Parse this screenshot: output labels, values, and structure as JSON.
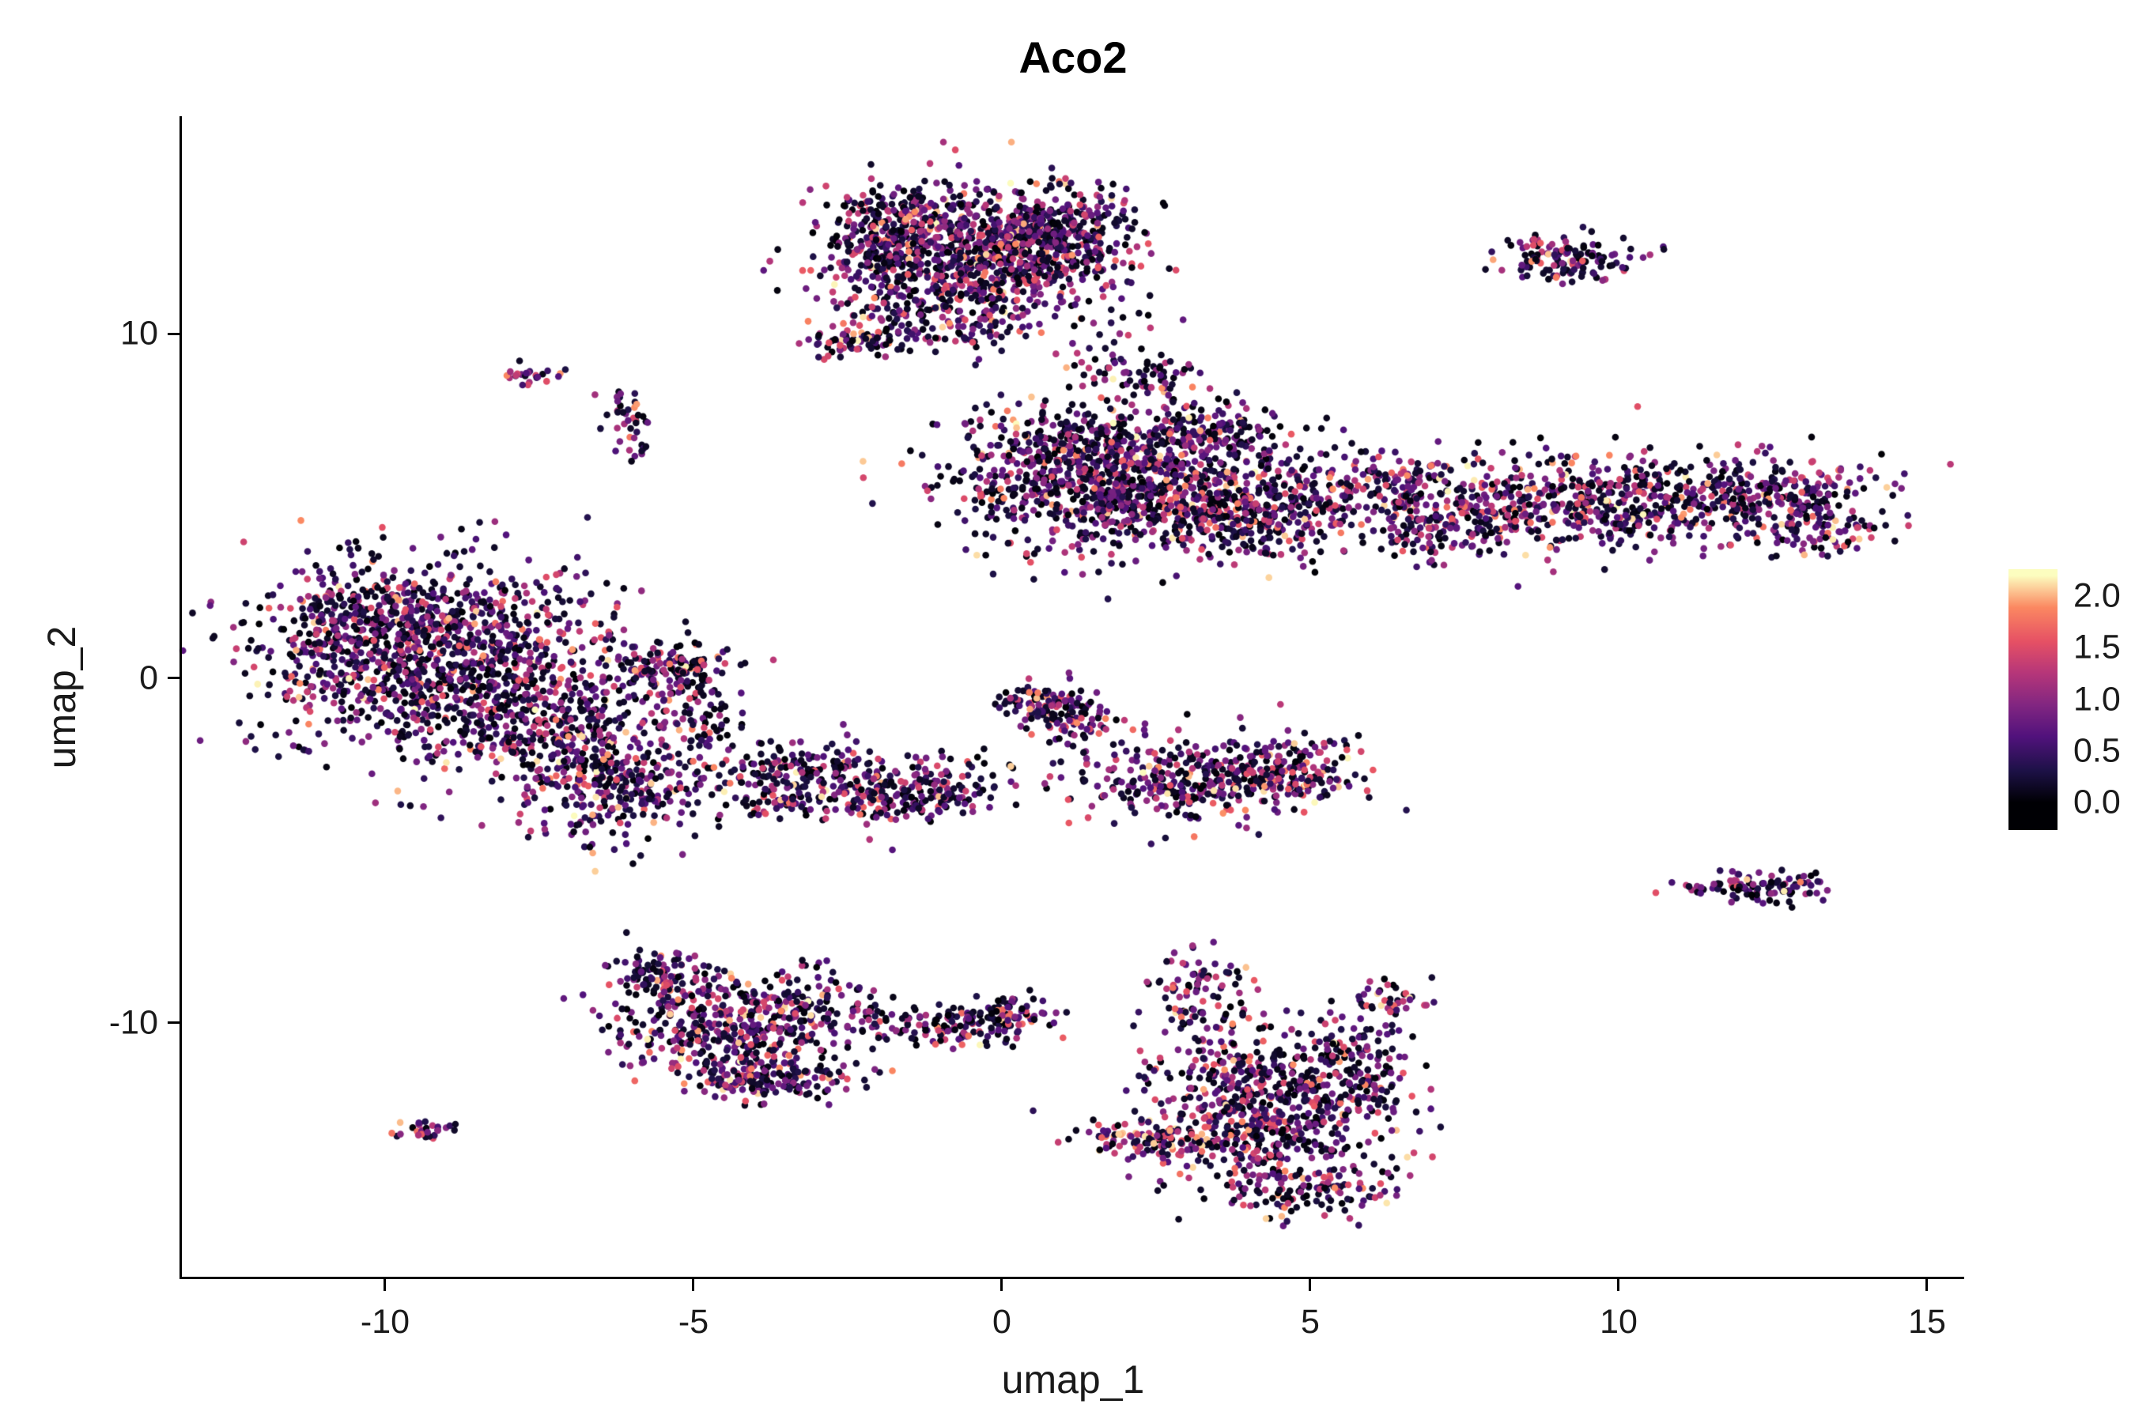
{
  "title": "Aco2",
  "axes": {
    "x": {
      "label": "umap_1",
      "ticks": [
        "-10",
        "-5",
        "0",
        "5",
        "10",
        "15"
      ],
      "tick_values": [
        -10,
        -5,
        0,
        5,
        10,
        15
      ],
      "range": [
        -13.3,
        15.6
      ]
    },
    "y": {
      "label": "umap_2",
      "ticks": [
        "10",
        "0",
        "-10"
      ],
      "tick_values": [
        10,
        0,
        -10
      ],
      "range": [
        -17.4,
        16.3
      ]
    }
  },
  "legend": {
    "ticks": [
      "2.0",
      "1.5",
      "1.0",
      "0.5",
      "0.0"
    ],
    "tick_values": [
      2.0,
      1.5,
      1.0,
      0.5,
      0.0
    ]
  },
  "chart_data": {
    "type": "scatter",
    "title": "Aco2",
    "xlabel": "umap_1",
    "ylabel": "umap_2",
    "xlim": [
      -13.3,
      15.6
    ],
    "ylim": [
      -17.4,
      16.3
    ],
    "grid": false,
    "legend_position": "right",
    "point_radius": 4.3,
    "colormap": {
      "name": "magma",
      "domain": [
        0,
        2.2
      ],
      "stops": [
        {
          "t": 0.0,
          "color": "#000004"
        },
        {
          "t": 0.14,
          "color": "#1d1147"
        },
        {
          "t": 0.29,
          "color": "#51127c"
        },
        {
          "t": 0.43,
          "color": "#822681"
        },
        {
          "t": 0.57,
          "color": "#b63679"
        },
        {
          "t": 0.71,
          "color": "#e65164"
        },
        {
          "t": 0.86,
          "color": "#fb8861"
        },
        {
          "t": 1.0,
          "color": "#fcfdbf"
        }
      ]
    },
    "clusters": [
      {
        "cx": -0.4,
        "cy": 12.3,
        "sx": 1.15,
        "sy": 0.95,
        "n": 850,
        "hot": 0.03
      },
      {
        "cx": 0.7,
        "cy": 12.9,
        "sx": 0.75,
        "sy": 0.6,
        "n": 280,
        "hot": 0
      },
      {
        "cx": -1.6,
        "cy": 13.4,
        "sx": 0.5,
        "sy": 0.4,
        "n": 90,
        "hot": 0
      },
      {
        "cx": -2.35,
        "cy": 9.8,
        "sx": 0.45,
        "sy": 0.22,
        "n": 70,
        "hot": 0.05
      },
      {
        "cx": -0.9,
        "cy": 10.4,
        "sx": 0.8,
        "sy": 0.5,
        "n": 140,
        "hot": 0
      },
      {
        "cx": -1.9,
        "cy": 12.4,
        "sx": 0.45,
        "sy": 0.7,
        "n": 120,
        "hot": 0
      },
      {
        "cx": 1.7,
        "cy": 9.0,
        "sx": 0.4,
        "sy": 0.6,
        "n": 40,
        "hot": 0
      },
      {
        "cx": 9.2,
        "cy": 12.1,
        "sx": 0.55,
        "sy": 0.4,
        "n": 130,
        "hot": 0.06
      },
      {
        "cx": -7.65,
        "cy": 8.8,
        "sx": 0.22,
        "sy": 0.18,
        "n": 24,
        "hot": 0.1
      },
      {
        "cx": -6.05,
        "cy": 7.9,
        "sx": 0.18,
        "sy": 0.45,
        "n": 30,
        "hot": 0
      },
      {
        "cx": -5.95,
        "cy": 6.9,
        "sx": 0.14,
        "sy": 0.3,
        "n": 14,
        "hot": 0
      },
      {
        "cx": 2.1,
        "cy": 5.7,
        "sx": 1.45,
        "sy": 1.0,
        "n": 1050,
        "hot": 0.02
      },
      {
        "cx": 4.2,
        "cy": 4.7,
        "sx": 0.85,
        "sy": 0.6,
        "n": 260,
        "hot": 0
      },
      {
        "cx": 1.0,
        "cy": 6.9,
        "sx": 0.7,
        "sy": 0.5,
        "n": 160,
        "hot": 0
      },
      {
        "cx": 3.4,
        "cy": 7.3,
        "sx": 0.5,
        "sy": 0.4,
        "n": 90,
        "hot": 0
      },
      {
        "cx": 2.6,
        "cy": 8.6,
        "sx": 0.3,
        "sy": 0.3,
        "n": 40,
        "hot": 0
      },
      {
        "cx": 9.4,
        "cy": 5.1,
        "sx": 1.8,
        "sy": 0.7,
        "n": 650,
        "hot": 0.05
      },
      {
        "cx": 12.4,
        "cy": 5.3,
        "sx": 0.9,
        "sy": 0.55,
        "n": 220,
        "hot": 0
      },
      {
        "cx": 7.2,
        "cy": 4.3,
        "sx": 0.7,
        "sy": 0.5,
        "n": 110,
        "hot": 0
      },
      {
        "cx": 6.3,
        "cy": 5.6,
        "sx": 0.5,
        "sy": 0.45,
        "n": 90,
        "hot": 0.08
      },
      {
        "cx": 13.3,
        "cy": 4.2,
        "sx": 0.5,
        "sy": 0.4,
        "n": 60,
        "hot": 0
      },
      {
        "cx": -9.1,
        "cy": 0.7,
        "sx": 1.4,
        "sy": 1.4,
        "n": 1150,
        "hot": 0.02
      },
      {
        "cx": -7.4,
        "cy": -1.4,
        "sx": 0.9,
        "sy": 0.9,
        "n": 330,
        "hot": 0
      },
      {
        "cx": -6.3,
        "cy": -3.1,
        "sx": 0.75,
        "sy": 0.8,
        "n": 280,
        "hot": 0.04
      },
      {
        "cx": -5.3,
        "cy": 0.3,
        "sx": 0.55,
        "sy": 0.45,
        "n": 130,
        "hot": 0
      },
      {
        "cx": -10.6,
        "cy": 1.8,
        "sx": 0.6,
        "sy": 0.8,
        "n": 160,
        "hot": 0
      },
      {
        "cx": -4.9,
        "cy": -1.2,
        "sx": 0.4,
        "sy": 0.6,
        "n": 70,
        "hot": 0
      },
      {
        "cx": -2.9,
        "cy": -3.0,
        "sx": 1.0,
        "sy": 0.55,
        "n": 330,
        "hot": 0
      },
      {
        "cx": -1.3,
        "cy": -3.4,
        "sx": 0.6,
        "sy": 0.4,
        "n": 130,
        "hot": 0
      },
      {
        "cx": 0.7,
        "cy": -0.7,
        "sx": 0.45,
        "sy": 0.3,
        "n": 90,
        "hot": 0.05
      },
      {
        "cx": 1.2,
        "cy": -1.3,
        "sx": 0.35,
        "sy": 0.35,
        "n": 70,
        "hot": 0
      },
      {
        "cx": 3.3,
        "cy": -2.9,
        "sx": 1.05,
        "sy": 0.6,
        "n": 380,
        "hot": 0.04
      },
      {
        "cx": 4.7,
        "cy": -2.8,
        "sx": 0.5,
        "sy": 0.45,
        "n": 110,
        "hot": 0.1
      },
      {
        "cx": 12.4,
        "cy": -6.1,
        "sx": 0.5,
        "sy": 0.22,
        "n": 90,
        "hot": 0
      },
      {
        "cx": 11.3,
        "cy": -6.1,
        "sx": 0.28,
        "sy": 0.1,
        "n": 14,
        "hot": 0
      },
      {
        "cx": -4.4,
        "cy": -10.3,
        "sx": 0.85,
        "sy": 0.75,
        "n": 420,
        "hot": 0.05
      },
      {
        "cx": -5.5,
        "cy": -8.7,
        "sx": 0.4,
        "sy": 0.5,
        "n": 110,
        "hot": 0.1
      },
      {
        "cx": -3.7,
        "cy": -11.7,
        "sx": 0.75,
        "sy": 0.3,
        "n": 140,
        "hot": 0
      },
      {
        "cx": -3.1,
        "cy": -9.4,
        "sx": 0.5,
        "sy": 0.55,
        "n": 90,
        "hot": 0
      },
      {
        "cx": -9.3,
        "cy": -13.1,
        "sx": 0.22,
        "sy": 0.13,
        "n": 28,
        "hot": 0.15
      },
      {
        "cx": -0.9,
        "cy": -10.1,
        "sx": 0.75,
        "sy": 0.3,
        "n": 150,
        "hot": 0
      },
      {
        "cx": 0.1,
        "cy": -9.7,
        "sx": 0.3,
        "sy": 0.25,
        "n": 50,
        "hot": 0
      },
      {
        "cx": 4.3,
        "cy": -12.5,
        "sx": 1.0,
        "sy": 1.15,
        "n": 650,
        "hot": 0.04
      },
      {
        "cx": 3.2,
        "cy": -9.3,
        "sx": 0.4,
        "sy": 0.75,
        "n": 110,
        "hot": 0.08
      },
      {
        "cx": 2.6,
        "cy": -13.4,
        "sx": 0.7,
        "sy": 0.25,
        "n": 130,
        "hot": 0.25
      },
      {
        "cx": 5.8,
        "cy": -11.4,
        "sx": 0.4,
        "sy": 0.8,
        "n": 110,
        "hot": 0
      },
      {
        "cx": 5.0,
        "cy": -14.9,
        "sx": 0.75,
        "sy": 0.4,
        "n": 110,
        "hot": 0.06
      },
      {
        "cx": 6.3,
        "cy": -9.3,
        "sx": 0.3,
        "sy": 0.3,
        "n": 40,
        "hot": 0
      }
    ]
  }
}
